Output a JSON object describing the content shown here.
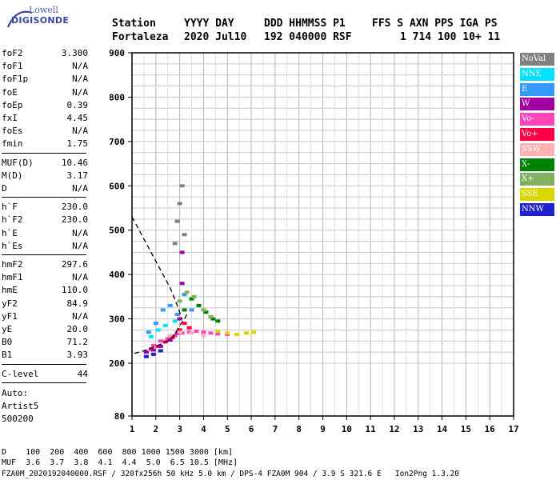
{
  "logo": {
    "line1": "Lowell",
    "line2": "DIGISONDE"
  },
  "header": {
    "row1": [
      "Station",
      "YYYY DAY",
      "DDD HHMMSS P1",
      "FFS S AXN PPS IGA PS"
    ],
    "row2": [
      "Fortaleza",
      "2020 Jul10",
      "192 040000 RSF",
      "1 714 100 10+ 11"
    ]
  },
  "params": [
    {
      "name": "foF2",
      "value": "3.300"
    },
    {
      "name": "foF1",
      "value": "N/A"
    },
    {
      "name": "foF1p",
      "value": "N/A"
    },
    {
      "name": "foE",
      "value": "N/A"
    },
    {
      "name": "foEp",
      "value": "0.39"
    },
    {
      "name": "fxI",
      "value": "4.45"
    },
    {
      "name": "foEs",
      "value": "N/A"
    },
    {
      "name": "fmin",
      "value": "1.75"
    },
    {
      "name": "MUF(D)",
      "value": "10.46"
    },
    {
      "name": "M(D)",
      "value": "3.17"
    },
    {
      "name": "D",
      "value": "N/A"
    },
    {
      "name": "h`F",
      "value": "230.0"
    },
    {
      "name": "h`F2",
      "value": "230.0"
    },
    {
      "name": "h`E",
      "value": "N/A"
    },
    {
      "name": "h`Es",
      "value": "N/A"
    },
    {
      "name": "hmF2",
      "value": "297.6"
    },
    {
      "name": "hmF1",
      "value": "N/A"
    },
    {
      "name": "hmE",
      "value": "110.0"
    },
    {
      "name": "yF2",
      "value": "84.9"
    },
    {
      "name": "yF1",
      "value": "N/A"
    },
    {
      "name": "yE",
      "value": "20.0"
    },
    {
      "name": "B0",
      "value": "71.2"
    },
    {
      "name": "B1",
      "value": "3.93"
    },
    {
      "name": "C-level",
      "value": "44"
    }
  ],
  "auto": [
    "Auto:",
    "Artist5",
    "500200"
  ],
  "legend": [
    {
      "label": "NoVal",
      "color": "#808080"
    },
    {
      "label": "NNE",
      "color": "#00e0ff"
    },
    {
      "label": "E",
      "color": "#3399ff"
    },
    {
      "label": "W",
      "color": "#a000a0"
    },
    {
      "label": "Vo-",
      "color": "#ff44b8"
    },
    {
      "label": "Vo+",
      "color": "#ff0044"
    },
    {
      "label": "SSW",
      "color": "#ffb0b0"
    },
    {
      "label": "X-",
      "color": "#008000"
    },
    {
      "label": "X+",
      "color": "#80b060"
    },
    {
      "label": "SSE",
      "color": "#d8d800"
    },
    {
      "label": "NNW",
      "color": "#2020d0"
    }
  ],
  "footer": {
    "line1": "D    100  200  400  600  800 1000 1500 3000 [km]",
    "line2": "MUF  3.6  3.7  3.8  4.1  4.4  5.0  6.5 10.5 [MHz]",
    "line3": "FZA0M_2020192040000.RSF / 320fx256h 50 kHz 5.0 km / DPS-4 FZA0M 904 / 3.9 S 321.6 E   Ion2Png 1.3.20"
  },
  "chart_data": {
    "type": "scatter",
    "title": "",
    "xlabel": "",
    "ylabel": "",
    "xlim": [
      1,
      17
    ],
    "ylim": [
      80,
      900
    ],
    "x_ticks": [
      1,
      2,
      3,
      4,
      5,
      6,
      7,
      8,
      9,
      10,
      11,
      12,
      13,
      14,
      15,
      16,
      17
    ],
    "y_ticks": [
      80,
      200,
      300,
      400,
      500,
      600,
      700,
      800,
      900
    ],
    "grid": true,
    "legend_position": "right",
    "series": [
      {
        "name": "Vo-",
        "points": [
          [
            1.9,
            240
          ],
          [
            2.2,
            250
          ],
          [
            2.5,
            255
          ],
          [
            2.8,
            262
          ],
          [
            3.1,
            268
          ],
          [
            3.4,
            270
          ],
          [
            3.7,
            272
          ],
          [
            4.0,
            270
          ],
          [
            4.3,
            268
          ],
          [
            4.6,
            266
          ],
          [
            5.0,
            265
          ]
        ]
      },
      {
        "name": "Vo+",
        "points": [
          [
            1.8,
            232
          ],
          [
            2.1,
            238
          ],
          [
            2.4,
            248
          ],
          [
            2.7,
            258
          ],
          [
            3.0,
            275
          ],
          [
            3.2,
            290
          ],
          [
            3.4,
            280
          ]
        ]
      },
      {
        "name": "W",
        "points": [
          [
            1.6,
            225
          ],
          [
            1.9,
            230
          ],
          [
            2.2,
            238
          ],
          [
            2.6,
            252
          ],
          [
            2.9,
            268
          ],
          [
            3.0,
            300
          ],
          [
            3.1,
            380
          ],
          [
            3.1,
            450
          ]
        ]
      },
      {
        "name": "E",
        "points": [
          [
            1.7,
            270
          ],
          [
            2.0,
            290
          ],
          [
            2.3,
            320
          ],
          [
            2.6,
            330
          ],
          [
            2.9,
            310
          ],
          [
            3.2,
            355
          ],
          [
            3.5,
            320
          ]
        ]
      },
      {
        "name": "NNE",
        "points": [
          [
            1.8,
            260
          ],
          [
            2.1,
            275
          ],
          [
            2.4,
            285
          ],
          [
            2.8,
            295
          ]
        ]
      },
      {
        "name": "X-",
        "points": [
          [
            3.2,
            320
          ],
          [
            3.5,
            345
          ],
          [
            3.8,
            330
          ],
          [
            4.1,
            315
          ],
          [
            4.4,
            300
          ],
          [
            4.6,
            295
          ]
        ]
      },
      {
        "name": "X+",
        "points": [
          [
            3.0,
            340
          ],
          [
            3.3,
            360
          ],
          [
            3.6,
            350
          ],
          [
            4.0,
            320
          ],
          [
            4.3,
            305
          ]
        ]
      },
      {
        "name": "SSE",
        "points": [
          [
            4.6,
            272
          ],
          [
            5.0,
            268
          ],
          [
            5.4,
            265
          ],
          [
            5.8,
            268
          ],
          [
            6.1,
            270
          ]
        ]
      },
      {
        "name": "SSW",
        "points": [
          [
            2.6,
            262
          ],
          [
            3.0,
            270
          ],
          [
            3.5,
            268
          ],
          [
            4.0,
            262
          ]
        ]
      },
      {
        "name": "NNW",
        "points": [
          [
            1.6,
            215
          ],
          [
            1.9,
            220
          ],
          [
            2.2,
            228
          ]
        ]
      },
      {
        "name": "NoVal",
        "points": [
          [
            2.9,
            520
          ],
          [
            3.0,
            560
          ],
          [
            3.1,
            600
          ],
          [
            3.2,
            490
          ],
          [
            2.8,
            470
          ]
        ]
      }
    ],
    "profile_curve": [
      [
        1.0,
        530
      ],
      [
        1.4,
        490
      ],
      [
        1.8,
        450
      ],
      [
        2.2,
        410
      ],
      [
        2.6,
        370
      ],
      [
        2.9,
        330
      ],
      [
        3.1,
        300
      ]
    ],
    "trace_curve": [
      [
        1.1,
        222
      ],
      [
        1.5,
        228
      ],
      [
        2.0,
        238
      ],
      [
        2.5,
        250
      ],
      [
        2.8,
        265
      ],
      [
        3.0,
        285
      ],
      [
        3.2,
        300
      ],
      [
        3.3,
        310
      ]
    ]
  }
}
